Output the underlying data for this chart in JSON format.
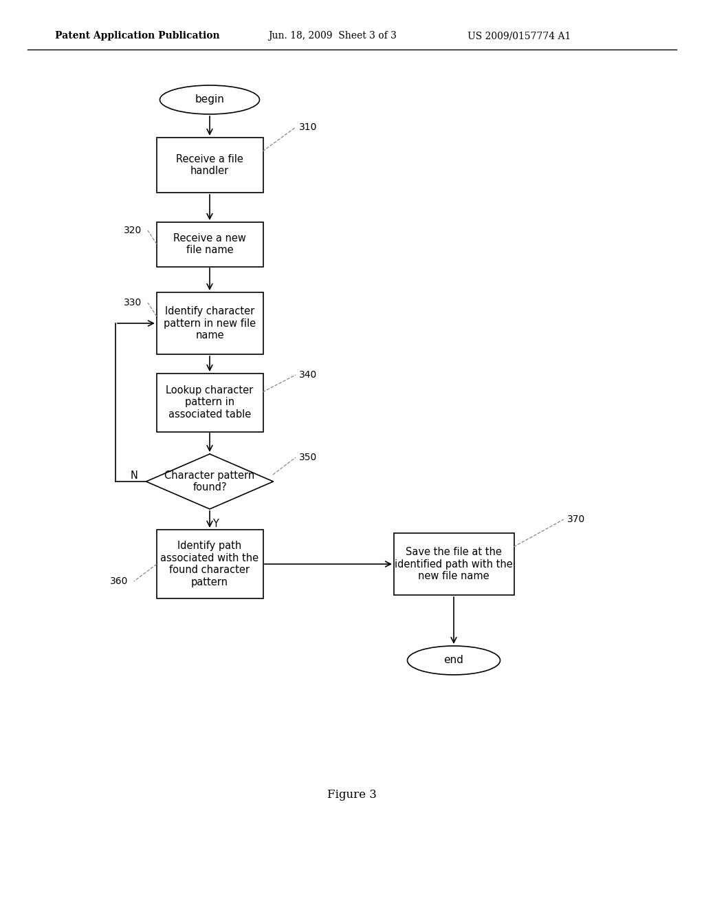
{
  "title_left": "Patent Application Publication",
  "title_mid": "Jun. 18, 2009  Sheet 3 of 3",
  "title_right": "US 2009/0157774 A1",
  "figure_caption": "Figure 3",
  "background_color": "#ffffff",
  "line_color": "#000000",
  "text_color": "#000000",
  "begin_label": "begin",
  "end_label": "end",
  "box310_label": "Receive a file\nhandler",
  "box320_label": "Receive a new\nfile name",
  "box330_label": "Identify character\npattern in new file\nname",
  "box340_label": "Lookup character\npattern in\nassociated table",
  "diamond350_label": "Character pattern\nfound?",
  "box360_label": "Identify path\nassociated with the\nfound character\npattern",
  "box370_label": "Save the file at the\nidentified path with the\nnew file name",
  "ref310": "310",
  "ref320": "320",
  "ref330": "330",
  "ref340": "340",
  "ref350": "350",
  "ref360": "360",
  "ref370": "370"
}
